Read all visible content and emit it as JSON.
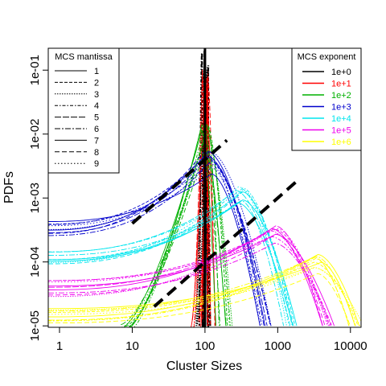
{
  "chart_data": {
    "type": "line",
    "title": "",
    "xlabel": "Cluster Sizes",
    "ylabel": "PDFs",
    "x_scale": "log",
    "y_scale": "log",
    "xlim": [
      0.7,
      14000
    ],
    "ylim": [
      9.5e-06,
      0.22
    ],
    "x_ticks": [
      1,
      10,
      100,
      1000,
      10000
    ],
    "x_tick_labels": [
      "1",
      "10",
      "100",
      "1000",
      "10000"
    ],
    "y_ticks": [
      1e-05,
      0.0001,
      0.001,
      0.01,
      0.1
    ],
    "y_tick_labels": [
      "1e-05",
      "1e-04",
      "1e-03",
      "1e-02",
      "1e-01"
    ],
    "grid": false,
    "legend_mantissa": {
      "title": "MCS mantissa",
      "placement": "top-left",
      "entries": [
        "1",
        "2",
        "3",
        "4",
        "5",
        "6",
        "7",
        "8",
        "9"
      ],
      "dash_patterns": [
        "",
        "4,2",
        "1.5,1.5",
        "4,2,1.5,2",
        "8,2",
        "7,2,2,2",
        "",
        "6,3",
        "1.5,2.5"
      ]
    },
    "legend_exponent": {
      "title": "MCS exponent",
      "placement": "top-right",
      "entries": [
        "1e+0",
        "1e+1",
        "1e+2",
        "1e+3",
        "1e+4",
        "1e+5",
        "1e+6"
      ],
      "colors": [
        "#000000",
        "#ff0000",
        "#00b000",
        "#0000cc",
        "#00e5ee",
        "#ee00ee",
        "#ffff00"
      ]
    },
    "vertical_line": {
      "x": 100,
      "color": "#000000"
    },
    "reference_lines": [
      {
        "x": [
          10,
          200
        ],
        "y": [
          0.0004,
          0.008
        ],
        "style": "dashed",
        "color": "#000000"
      },
      {
        "x": [
          20,
          2000
        ],
        "y": [
          2e-05,
          0.002
        ],
        "style": "dashed",
        "color": "#000000"
      }
    ],
    "series": [
      {
        "exponent": "1e+0",
        "color": "#000000",
        "peak_x": 100,
        "peak_y": 0.17,
        "left_x": 96,
        "right_x": 104,
        "left_y": 1e-05,
        "right_y": 1e-05,
        "count": 5
      },
      {
        "exponent": "1e+1",
        "color": "#ff0000",
        "peak_x": 100,
        "peak_y": 0.09,
        "left_x": 78,
        "right_x": 125,
        "left_y": 1e-05,
        "right_y": 1e-05,
        "count": 9
      },
      {
        "exponent": "1e+2",
        "color": "#00b000",
        "peak_x": 100,
        "peak_y": 0.012,
        "left_x": 8,
        "right_x": 200,
        "left_y": 1e-05,
        "right_y": 1e-05,
        "count": 9
      },
      {
        "exponent": "1e+3",
        "color": "#0000cc",
        "peak_x": 110,
        "peak_y": 0.0045,
        "left_x": 0.7,
        "right_x": 700,
        "left_y": 0.00035,
        "right_y": 1e-05,
        "count": 9
      },
      {
        "exponent": "1e+4",
        "color": "#00e5ee",
        "peak_x": 300,
        "peak_y": 0.0013,
        "left_x": 0.7,
        "right_x": 1600,
        "left_y": 0.00012,
        "right_y": 1e-05,
        "count": 9
      },
      {
        "exponent": "1e+5",
        "color": "#ee00ee",
        "peak_x": 900,
        "peak_y": 0.00035,
        "left_x": 0.7,
        "right_x": 5000,
        "left_y": 4e-05,
        "right_y": 1e-05,
        "count": 9
      },
      {
        "exponent": "1e+6",
        "color": "#ffff00",
        "peak_x": 3500,
        "peak_y": 0.00011,
        "left_x": 0.7,
        "right_x": 13000,
        "left_y": 1.5e-05,
        "right_y": 1e-05,
        "count": 9
      }
    ]
  }
}
